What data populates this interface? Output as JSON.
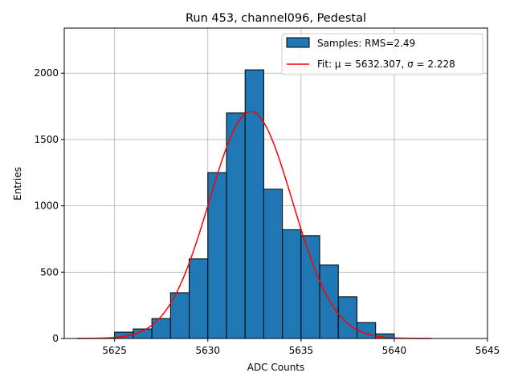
{
  "chart_data": {
    "type": "bar",
    "title": "Run 453, channel096, Pedestal",
    "xlabel": "ADC Counts",
    "ylabel": "Entries",
    "xlim": [
      5622.3,
      5645.0
    ],
    "ylim": [
      0,
      2340
    ],
    "xticks": [
      5625,
      5630,
      5635,
      5640,
      5645
    ],
    "xtick_labels": [
      "5625",
      "5630",
      "5635",
      "5640",
      "5645"
    ],
    "yticks": [
      0,
      500,
      1000,
      1500,
      2000
    ],
    "ytick_labels": [
      "0",
      "500",
      "1000",
      "1500",
      "2000"
    ],
    "grid": true,
    "legend_placement": "top-right",
    "bins": {
      "edges": [
        5625,
        5626,
        5627,
        5628,
        5629,
        5630,
        5631,
        5632,
        5633,
        5634,
        5635,
        5636,
        5637,
        5638,
        5639,
        5640
      ],
      "counts": [
        48,
        72,
        150,
        345,
        600,
        1250,
        1700,
        2025,
        1125,
        820,
        775,
        555,
        315,
        120,
        35
      ]
    },
    "series": [
      {
        "name": "Samples: RMS=2.49",
        "kind": "histogram",
        "color": "#1f77b4",
        "edge_color": "#000000"
      },
      {
        "name": "Fit: μ = 5632.307, σ = 2.228",
        "kind": "gaussian_fit",
        "color": "#ff0000",
        "mu": 5632.307,
        "sigma": 2.228,
        "amplitude": 1710,
        "x_range": [
          5623,
          5642
        ]
      }
    ]
  }
}
